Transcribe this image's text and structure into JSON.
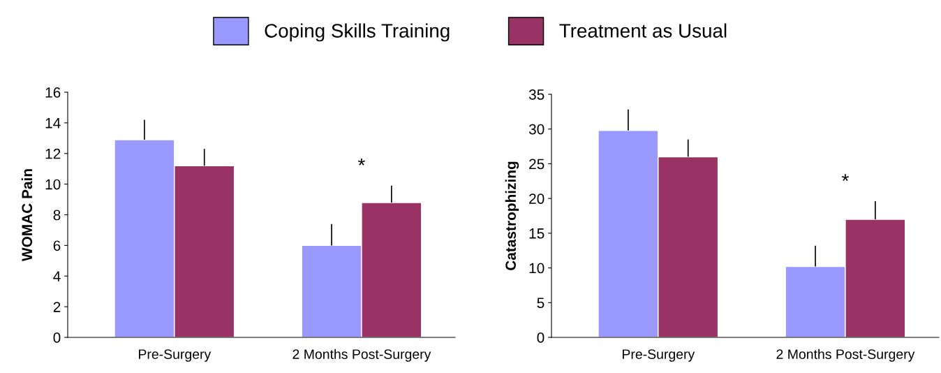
{
  "chart_data": [
    {
      "type": "bar",
      "ylabel": "WOMAC Pain",
      "categories": [
        "Pre-Surgery",
        "2 Months Post-Surgery"
      ],
      "series": [
        {
          "name": "Coping Skills Training",
          "color": "#9999ff",
          "values": [
            12.9,
            6.0
          ],
          "errors": [
            [
              12.9,
              14.2
            ],
            [
              6.0,
              7.4
            ]
          ]
        },
        {
          "name": "Treatment as Usual",
          "color": "#993366",
          "values": [
            11.2,
            8.8
          ],
          "errors": [
            [
              11.2,
              12.3
            ],
            [
              8.8,
              9.9
            ]
          ]
        }
      ],
      "ylim": [
        0,
        16
      ],
      "yticks": [
        0,
        2,
        4,
        6,
        8,
        10,
        12,
        14,
        16
      ],
      "grid": false,
      "legend": "top",
      "annotations": [
        "*"
      ]
    },
    {
      "type": "bar",
      "ylabel": "Catastrophizing",
      "categories": [
        "Pre-Surgery",
        "2 Months Post-Surgery"
      ],
      "series": [
        {
          "color": "#9999ff",
          "values": [
            29.8,
            10.2
          ],
          "errors": [
            [
              29.8,
              32.8
            ],
            [
              10.2,
              13.2
            ]
          ]
        },
        {
          "color": "#993366",
          "values": [
            26.0,
            17.0
          ],
          "errors": [
            [
              26.0,
              28.5
            ],
            [
              17.0,
              19.6
            ]
          ]
        }
      ],
      "ylim": [
        0,
        35
      ],
      "yticks": [
        0,
        5,
        10,
        15,
        20,
        25,
        30,
        35
      ],
      "grid": false,
      "annotations": [
        "*"
      ]
    }
  ]
}
